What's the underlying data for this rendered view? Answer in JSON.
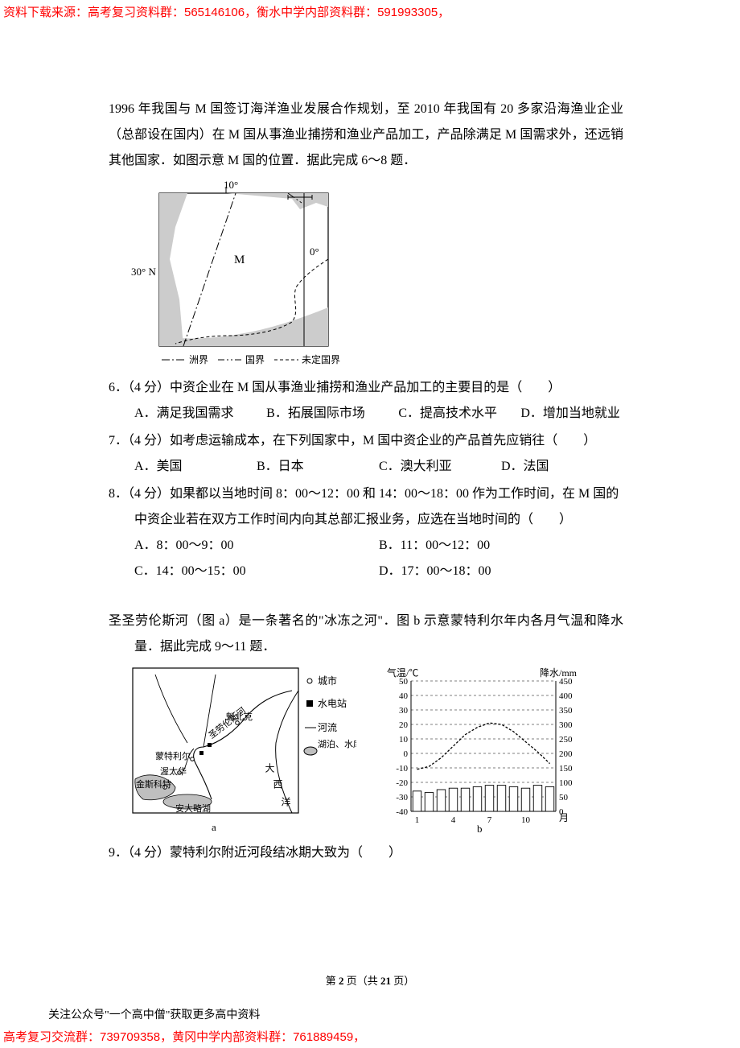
{
  "watermark": {
    "top": "资料下载来源：高考复习资料群：565146106，衡水中学内部资料群：591993305，",
    "bottom": "高考复习交流群：739709358，黄冈中学内部资料群：761889459，"
  },
  "footer_note": "关注公众号\"一个高中僧\"获取更多高中资料",
  "page_number": {
    "prefix": "第 ",
    "current": "2",
    "mid": " 页（共 ",
    "total": "21",
    "suffix": " 页）"
  },
  "passage1": {
    "text": "1996 年我国与 M 国签订海洋渔业发展合作规划，至 2010 年我国有 20 多家沿海渔业企业（总部设在国内）在 M 国从事渔业捕捞和渔业产品加工，产品除满足 M 国需求外，还远销其他国家．如图示意 M 国的位置．据此完成 6～8 题．"
  },
  "figure1": {
    "type": "map",
    "labels": {
      "lon10": "10°",
      "lat30": "30° N",
      "equator": "0°",
      "country": "M"
    },
    "legend": {
      "continent_border": "洲界",
      "national_border": "国界",
      "undefined_border": "未定国界"
    },
    "colors": {
      "land": "#cccccc",
      "sea": "#ffffff",
      "line": "#000000"
    }
  },
  "q6": {
    "stem": "6．（4 分）中资企业在 M 国从事渔业捕捞和渔业产品加工的主要目的是（　　）",
    "opts": {
      "A": "A．满足我国需求",
      "B": "B．拓展国际市场",
      "C": "C．提高技术水平",
      "D": "D．增加当地就业"
    }
  },
  "q7": {
    "stem": "7．（4 分）如考虑运输成本，在下列国家中，M 国中资企业的产品首先应销往（　　）",
    "opts": {
      "A": "A．美国",
      "B": "B．日本",
      "C": "C．澳大利亚",
      "D": "D．法国"
    }
  },
  "q8": {
    "stem": "8．（4 分）如果都以当地时间 8：00～12：00 和 14：00～18：00 作为工作时间，在 M 国的中资企业若在双方工作时间内向其总部汇报业务，应选在当地时间的（　　）",
    "opts": {
      "A": "A．8：00～9：00",
      "B": "B．11：00～12：00",
      "C": "C．14：00～15：00",
      "D": "D．17：00～18：00"
    }
  },
  "passage2": {
    "text": "圣圣劳伦斯河（图 a）是一条著名的\"冰冻之河\"．图 b 示意蒙特利尔年内各月气温和降水量．据此完成 9～11 题．"
  },
  "figure2a": {
    "type": "map",
    "caption": "a",
    "legend": {
      "city": "城市",
      "hydro": "水电站",
      "river": "河流",
      "lake": "湖泊、水库"
    },
    "labels": {
      "quebec": "魁北克",
      "montreal": "蒙特利尔",
      "ottawa": "渥太华",
      "kingston": "金斯科特",
      "ontario": "安大略湖",
      "atlantic": "大西洋",
      "stlawrence": "圣劳伦斯河"
    },
    "symbol_colors": {
      "outline": "#000000",
      "lake_fill": "#bfbfbf"
    }
  },
  "figure2b": {
    "type": "climograph",
    "caption": "b",
    "axis_left": {
      "label": "气温/℃",
      "min": -40,
      "max": 50,
      "ticks": [
        -40,
        -30,
        -20,
        -10,
        0,
        10,
        20,
        30,
        40,
        50
      ]
    },
    "axis_right": {
      "label": "降水/mm",
      "min": 0,
      "max": 450,
      "ticks": [
        0,
        50,
        100,
        150,
        200,
        250,
        300,
        350,
        400,
        450
      ]
    },
    "x_axis": {
      "label": "月",
      "ticks": [
        1,
        4,
        7,
        10
      ]
    },
    "temperature_c": [
      -11,
      -9,
      -3,
      5,
      13,
      18,
      21,
      20,
      15,
      8,
      1,
      -7
    ],
    "precip_mm": [
      70,
      65,
      75,
      80,
      80,
      85,
      90,
      90,
      85,
      80,
      90,
      85
    ],
    "colors": {
      "bar_fill": "#ffffff",
      "bar_stroke": "#000000",
      "curve": "#000000",
      "grid": "#000000",
      "bg": "#ffffff"
    },
    "title_fontsize": 12,
    "bar_width": 0.7
  },
  "q9": {
    "stem": "9．（4 分）蒙特利尔附近河段结冰期大致为（　　）"
  }
}
